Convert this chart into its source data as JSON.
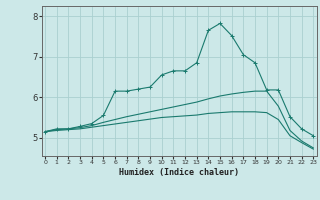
{
  "title": "",
  "xlabel": "Humidex (Indice chaleur)",
  "ylabel": "",
  "background_color": "#cce8e8",
  "grid_color": "#aad0d0",
  "line_color": "#1a7a6e",
  "x_ticks": [
    0,
    1,
    2,
    3,
    4,
    5,
    6,
    7,
    8,
    9,
    10,
    11,
    12,
    13,
    14,
    15,
    16,
    17,
    18,
    19,
    20,
    21,
    22,
    23
  ],
  "y_ticks": [
    5,
    6,
    7,
    8
  ],
  "ylim": [
    4.55,
    8.25
  ],
  "xlim": [
    -0.3,
    23.3
  ],
  "series": [
    {
      "x": [
        0,
        1,
        2,
        3,
        4,
        5,
        6,
        7,
        8,
        9,
        10,
        11,
        12,
        13,
        14,
        15,
        16,
        17,
        18,
        19,
        20,
        21,
        22,
        23
      ],
      "y": [
        5.15,
        5.22,
        5.22,
        5.28,
        5.35,
        5.55,
        6.15,
        6.15,
        6.2,
        6.25,
        6.55,
        6.65,
        6.65,
        6.85,
        7.65,
        7.82,
        7.52,
        7.05,
        6.85,
        6.18,
        6.18,
        5.52,
        5.22,
        5.05
      ],
      "marker": "+",
      "linestyle": "-",
      "linewidth": 0.8
    },
    {
      "x": [
        0,
        1,
        2,
        3,
        4,
        5,
        6,
        7,
        8,
        9,
        10,
        11,
        12,
        13,
        14,
        15,
        16,
        17,
        18,
        19,
        20,
        21,
        22,
        23
      ],
      "y": [
        5.15,
        5.2,
        5.22,
        5.25,
        5.3,
        5.38,
        5.45,
        5.52,
        5.58,
        5.64,
        5.7,
        5.76,
        5.82,
        5.88,
        5.96,
        6.03,
        6.08,
        6.12,
        6.15,
        6.15,
        5.78,
        5.18,
        4.92,
        4.75
      ],
      "marker": null,
      "linestyle": "-",
      "linewidth": 0.8
    },
    {
      "x": [
        0,
        1,
        2,
        3,
        4,
        5,
        6,
        7,
        8,
        9,
        10,
        11,
        12,
        13,
        14,
        15,
        16,
        17,
        18,
        19,
        20,
        21,
        22,
        23
      ],
      "y": [
        5.15,
        5.18,
        5.2,
        5.22,
        5.26,
        5.3,
        5.34,
        5.38,
        5.42,
        5.46,
        5.5,
        5.52,
        5.54,
        5.56,
        5.6,
        5.62,
        5.64,
        5.64,
        5.64,
        5.62,
        5.45,
        5.05,
        4.88,
        4.72
      ],
      "marker": null,
      "linestyle": "-",
      "linewidth": 0.8
    }
  ]
}
